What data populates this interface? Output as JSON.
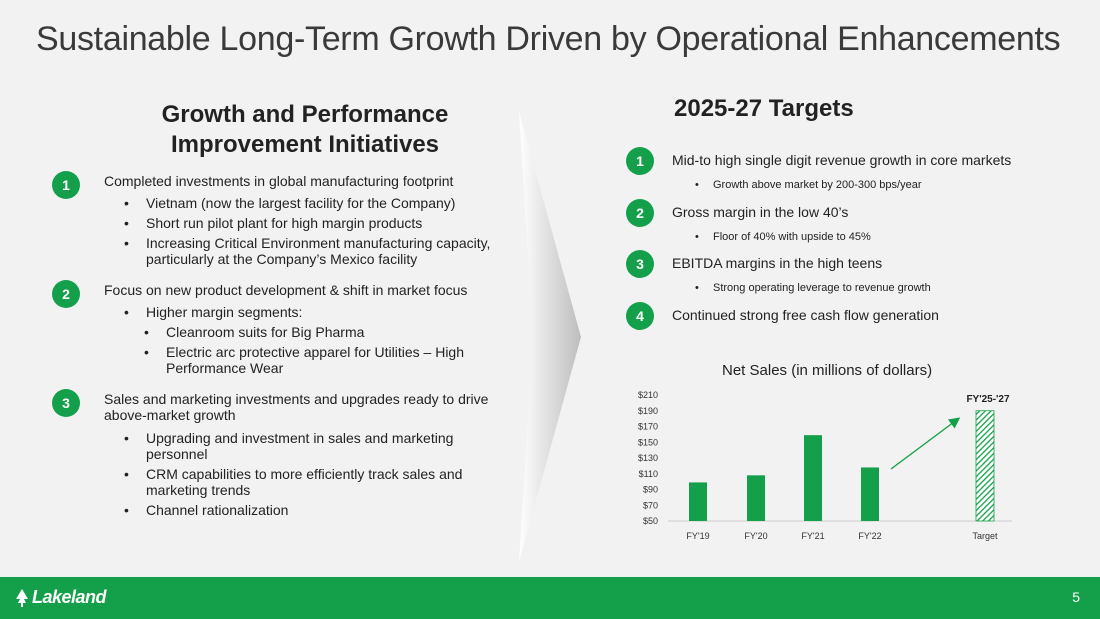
{
  "slide": {
    "title": "Sustainable Long-Term Growth Driven by Operational Enhancements",
    "page_number": "5",
    "logo_text": "Lakeland"
  },
  "left": {
    "heading_line1": "Growth and Performance",
    "heading_line2": "Improvement Initiatives",
    "initiatives": [
      {
        "number": "1",
        "text": "Completed investments in global manufacturing footprint",
        "bullets": [
          "Vietnam (now the largest facility for the Company)",
          "Short run pilot plant for high margin products",
          "Increasing Critical Environment manufacturing capacity, particularly at the Company’s Mexico facility"
        ]
      },
      {
        "number": "2",
        "text": "Focus on new product development & shift in market focus",
        "bullets": [
          "Higher margin segments:",
          "Cleanroom suits for Big Pharma",
          "Electric arc protective apparel for Utilities – High Performance Wear"
        ]
      },
      {
        "number": "3",
        "text": "Sales and marketing investments and upgrades ready to drive above-market growth",
        "bullets": [
          "Upgrading and investment in sales and marketing personnel",
          "CRM capabilities to more efficiently track sales and marketing trends",
          "Channel rationalization"
        ]
      }
    ]
  },
  "right": {
    "heading": "2025-27 Targets",
    "targets": [
      {
        "number": "1",
        "text": "Mid-to high single digit revenue growth in core markets",
        "sub": "Growth above market by 200-300 bps/year"
      },
      {
        "number": "2",
        "text": "Gross margin in the low 40’s",
        "sub": "Floor of 40% with upside to 45%"
      },
      {
        "number": "3",
        "text": "EBITDA margins in the high teens",
        "sub": "Strong operating leverage to revenue growth"
      },
      {
        "number": "4",
        "text": "Continued strong free cash flow generation",
        "sub": ""
      }
    ]
  },
  "colors": {
    "accent": "#14a04a",
    "footer": "#14a04a"
  },
  "chart_data": {
    "type": "bar",
    "title": "Net Sales (in millions of dollars)",
    "categories": [
      "FY'19",
      "FY'20",
      "FY'21",
      "FY'22",
      "Target"
    ],
    "values": [
      99,
      108,
      159,
      118,
      190
    ],
    "ylim": [
      50,
      210
    ],
    "yticks": [
      "$50",
      "$70",
      "$90",
      "$110",
      "$130",
      "$150",
      "$170",
      "$190",
      "$210"
    ],
    "target_label": "FY'25-'27",
    "xlabel": "",
    "ylabel": "",
    "grid": false,
    "series_colors": [
      "#14a04a",
      "#14a04a",
      "#14a04a",
      "#14a04a",
      "hatched"
    ]
  }
}
